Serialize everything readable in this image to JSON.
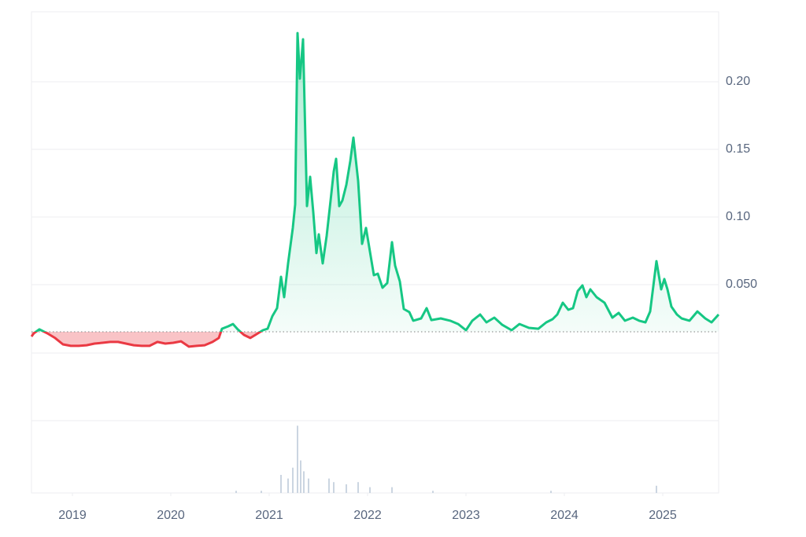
{
  "chart_data": {
    "type": "line",
    "x": [
      2018.584,
      2018.608,
      2018.664,
      2018.744,
      2018.824,
      2018.904,
      2018.984,
      2019.064,
      2019.144,
      2019.224,
      2019.304,
      2019.384,
      2019.464,
      2019.544,
      2019.624,
      2019.704,
      2019.784,
      2019.864,
      2019.944,
      2020.024,
      2020.104,
      2020.184,
      2020.264,
      2020.344,
      2020.424,
      2020.488,
      2020.52,
      2020.584,
      2020.632,
      2020.68,
      2020.744,
      2020.808,
      2020.872,
      2020.936,
      2020.984,
      2021.032,
      2021.08,
      2021.12,
      2021.152,
      2021.192,
      2021.24,
      2021.264,
      2021.288,
      2021.312,
      2021.344,
      2021.384,
      2021.416,
      2021.448,
      2021.48,
      2021.504,
      2021.544,
      2021.584,
      2021.624,
      2021.656,
      2021.68,
      2021.712,
      2021.744,
      2021.784,
      2021.824,
      2021.856,
      2021.904,
      2021.944,
      2021.984,
      2022.024,
      2022.064,
      2022.104,
      2022.152,
      2022.2,
      2022.248,
      2022.28,
      2022.328,
      2022.368,
      2022.424,
      2022.464,
      2022.544,
      2022.6,
      2022.648,
      2022.744,
      2022.84,
      2022.92,
      2023.0,
      2023.064,
      2023.144,
      2023.208,
      2023.288,
      2023.368,
      2023.464,
      2023.544,
      2023.64,
      2023.736,
      2023.816,
      2023.88,
      2023.928,
      2023.984,
      2024.04,
      2024.088,
      2024.136,
      2024.184,
      2024.224,
      2024.264,
      2024.328,
      2024.408,
      2024.488,
      2024.552,
      2024.616,
      2024.696,
      2024.76,
      2024.824,
      2024.872,
      2024.936,
      2024.984,
      2025.016,
      2025.048,
      2025.088,
      2025.144,
      2025.192,
      2025.272,
      2025.352,
      2025.432,
      2025.496,
      2025.568
    ],
    "series": [
      {
        "color": "#16c784",
        "values": [
          0.0116,
          0.014,
          0.0169,
          0.014,
          0.0105,
          0.0058,
          0.0047,
          0.0047,
          0.0052,
          0.0064,
          0.007,
          0.0076,
          0.0076,
          0.0064,
          0.0052,
          0.0047,
          0.0047,
          0.0076,
          0.0064,
          0.007,
          0.0081,
          0.0041,
          0.0047,
          0.0052,
          0.0076,
          0.0105,
          0.0174,
          0.0192,
          0.0209,
          0.0169,
          0.0128,
          0.0105,
          0.0134,
          0.0163,
          0.0174,
          0.0267,
          0.0326,
          0.0558,
          0.0407,
          0.0657,
          0.0919,
          0.1093,
          0.236,
          0.2023,
          0.2314,
          0.1081,
          0.1297,
          0.1035,
          0.0733,
          0.0872,
          0.0657,
          0.086,
          0.1122,
          0.1337,
          0.143,
          0.1081,
          0.1122,
          0.1238,
          0.1413,
          0.1587,
          0.1267,
          0.0802,
          0.0919,
          0.0744,
          0.057,
          0.0581,
          0.0477,
          0.0512,
          0.0814,
          0.064,
          0.0523,
          0.032,
          0.0297,
          0.0233,
          0.025,
          0.0326,
          0.0238,
          0.025,
          0.0233,
          0.0209,
          0.0163,
          0.0233,
          0.0279,
          0.0221,
          0.0256,
          0.0203,
          0.0163,
          0.0209,
          0.018,
          0.0174,
          0.0221,
          0.0244,
          0.0279,
          0.0366,
          0.0314,
          0.0326,
          0.0453,
          0.0494,
          0.0407,
          0.0465,
          0.0407,
          0.0366,
          0.0256,
          0.0291,
          0.0233,
          0.0256,
          0.0233,
          0.0221,
          0.0302,
          0.0674,
          0.0465,
          0.0541,
          0.0465,
          0.0337,
          0.0279,
          0.025,
          0.0233,
          0.0302,
          0.025,
          0.0221,
          0.0279
        ]
      },
      {
        "type": "bar",
        "axis": "y2",
        "color": "#cbd5e1",
        "x": [
          2020.664,
          2020.92,
          2021.12,
          2021.192,
          2021.24,
          2021.288,
          2021.32,
          2021.352,
          2021.4,
          2021.608,
          2021.656,
          2021.784,
          2021.904,
          2022.024,
          2022.248,
          2022.664,
          2023.864,
          2024.936
        ],
        "values": [
          3,
          3,
          25,
          20,
          35,
          93,
          45,
          30,
          20,
          20,
          15,
          12,
          15,
          8,
          8,
          3,
          3,
          10
        ]
      }
    ],
    "reference_value": 0.0151,
    "reference_color": "#999999",
    "below_color": "#ea3943",
    "xlim": [
      2018.584,
      2025.568
    ],
    "xticks": [
      2019,
      2020,
      2021,
      2022,
      2023,
      2024,
      2025
    ],
    "ylim": [
      0,
      0.25
    ],
    "yticks": [
      {
        "value": 0.05,
        "label": "0.050"
      },
      {
        "value": 0.1,
        "label": "0.10"
      },
      {
        "value": 0.15,
        "label": "0.15"
      },
      {
        "value": 0.2,
        "label": "0.20"
      }
    ],
    "y2lim": [
      0,
      100
    ],
    "grid": true
  }
}
